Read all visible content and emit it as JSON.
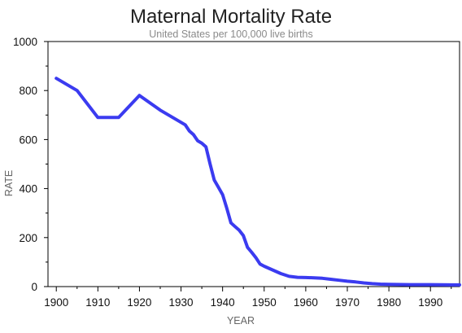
{
  "chart_data": {
    "type": "line",
    "title": "Maternal Mortality Rate",
    "subtitle": "United States per 100,000 live births",
    "xlabel": "YEAR",
    "ylabel": "RATE",
    "xlim": [
      1898,
      1997
    ],
    "ylim": [
      0,
      1000
    ],
    "x_ticks": [
      1900,
      1910,
      1920,
      1930,
      1940,
      1950,
      1960,
      1970,
      1980,
      1990
    ],
    "y_ticks": [
      0,
      200,
      400,
      600,
      800,
      1000
    ],
    "grid": false,
    "legend": "none",
    "line_color": "#3b3bf0",
    "series": [
      {
        "x": [
          1900,
          1905,
          1910,
          1915,
          1920,
          1925,
          1930,
          1931,
          1932,
          1933,
          1934,
          1935,
          1936,
          1937,
          1938,
          1939,
          1940,
          1941,
          1942,
          1943,
          1944,
          1945,
          1946,
          1947,
          1948,
          1949,
          1950,
          1952,
          1954,
          1956,
          1958,
          1960,
          1962,
          1964,
          1966,
          1968,
          1970,
          1972,
          1974,
          1976,
          1978,
          1980,
          1985,
          1990,
          1995,
          1997
        ],
        "values": [
          850,
          800,
          690,
          690,
          780,
          720,
          670,
          660,
          635,
          620,
          595,
          585,
          570,
          500,
          435,
          405,
          375,
          320,
          260,
          245,
          230,
          208,
          160,
          140,
          118,
          92,
          83,
          68,
          53,
          42,
          38,
          37,
          36,
          34,
          30,
          26,
          22,
          19,
          15,
          12,
          10,
          9,
          8,
          8,
          7,
          7
        ]
      }
    ]
  }
}
